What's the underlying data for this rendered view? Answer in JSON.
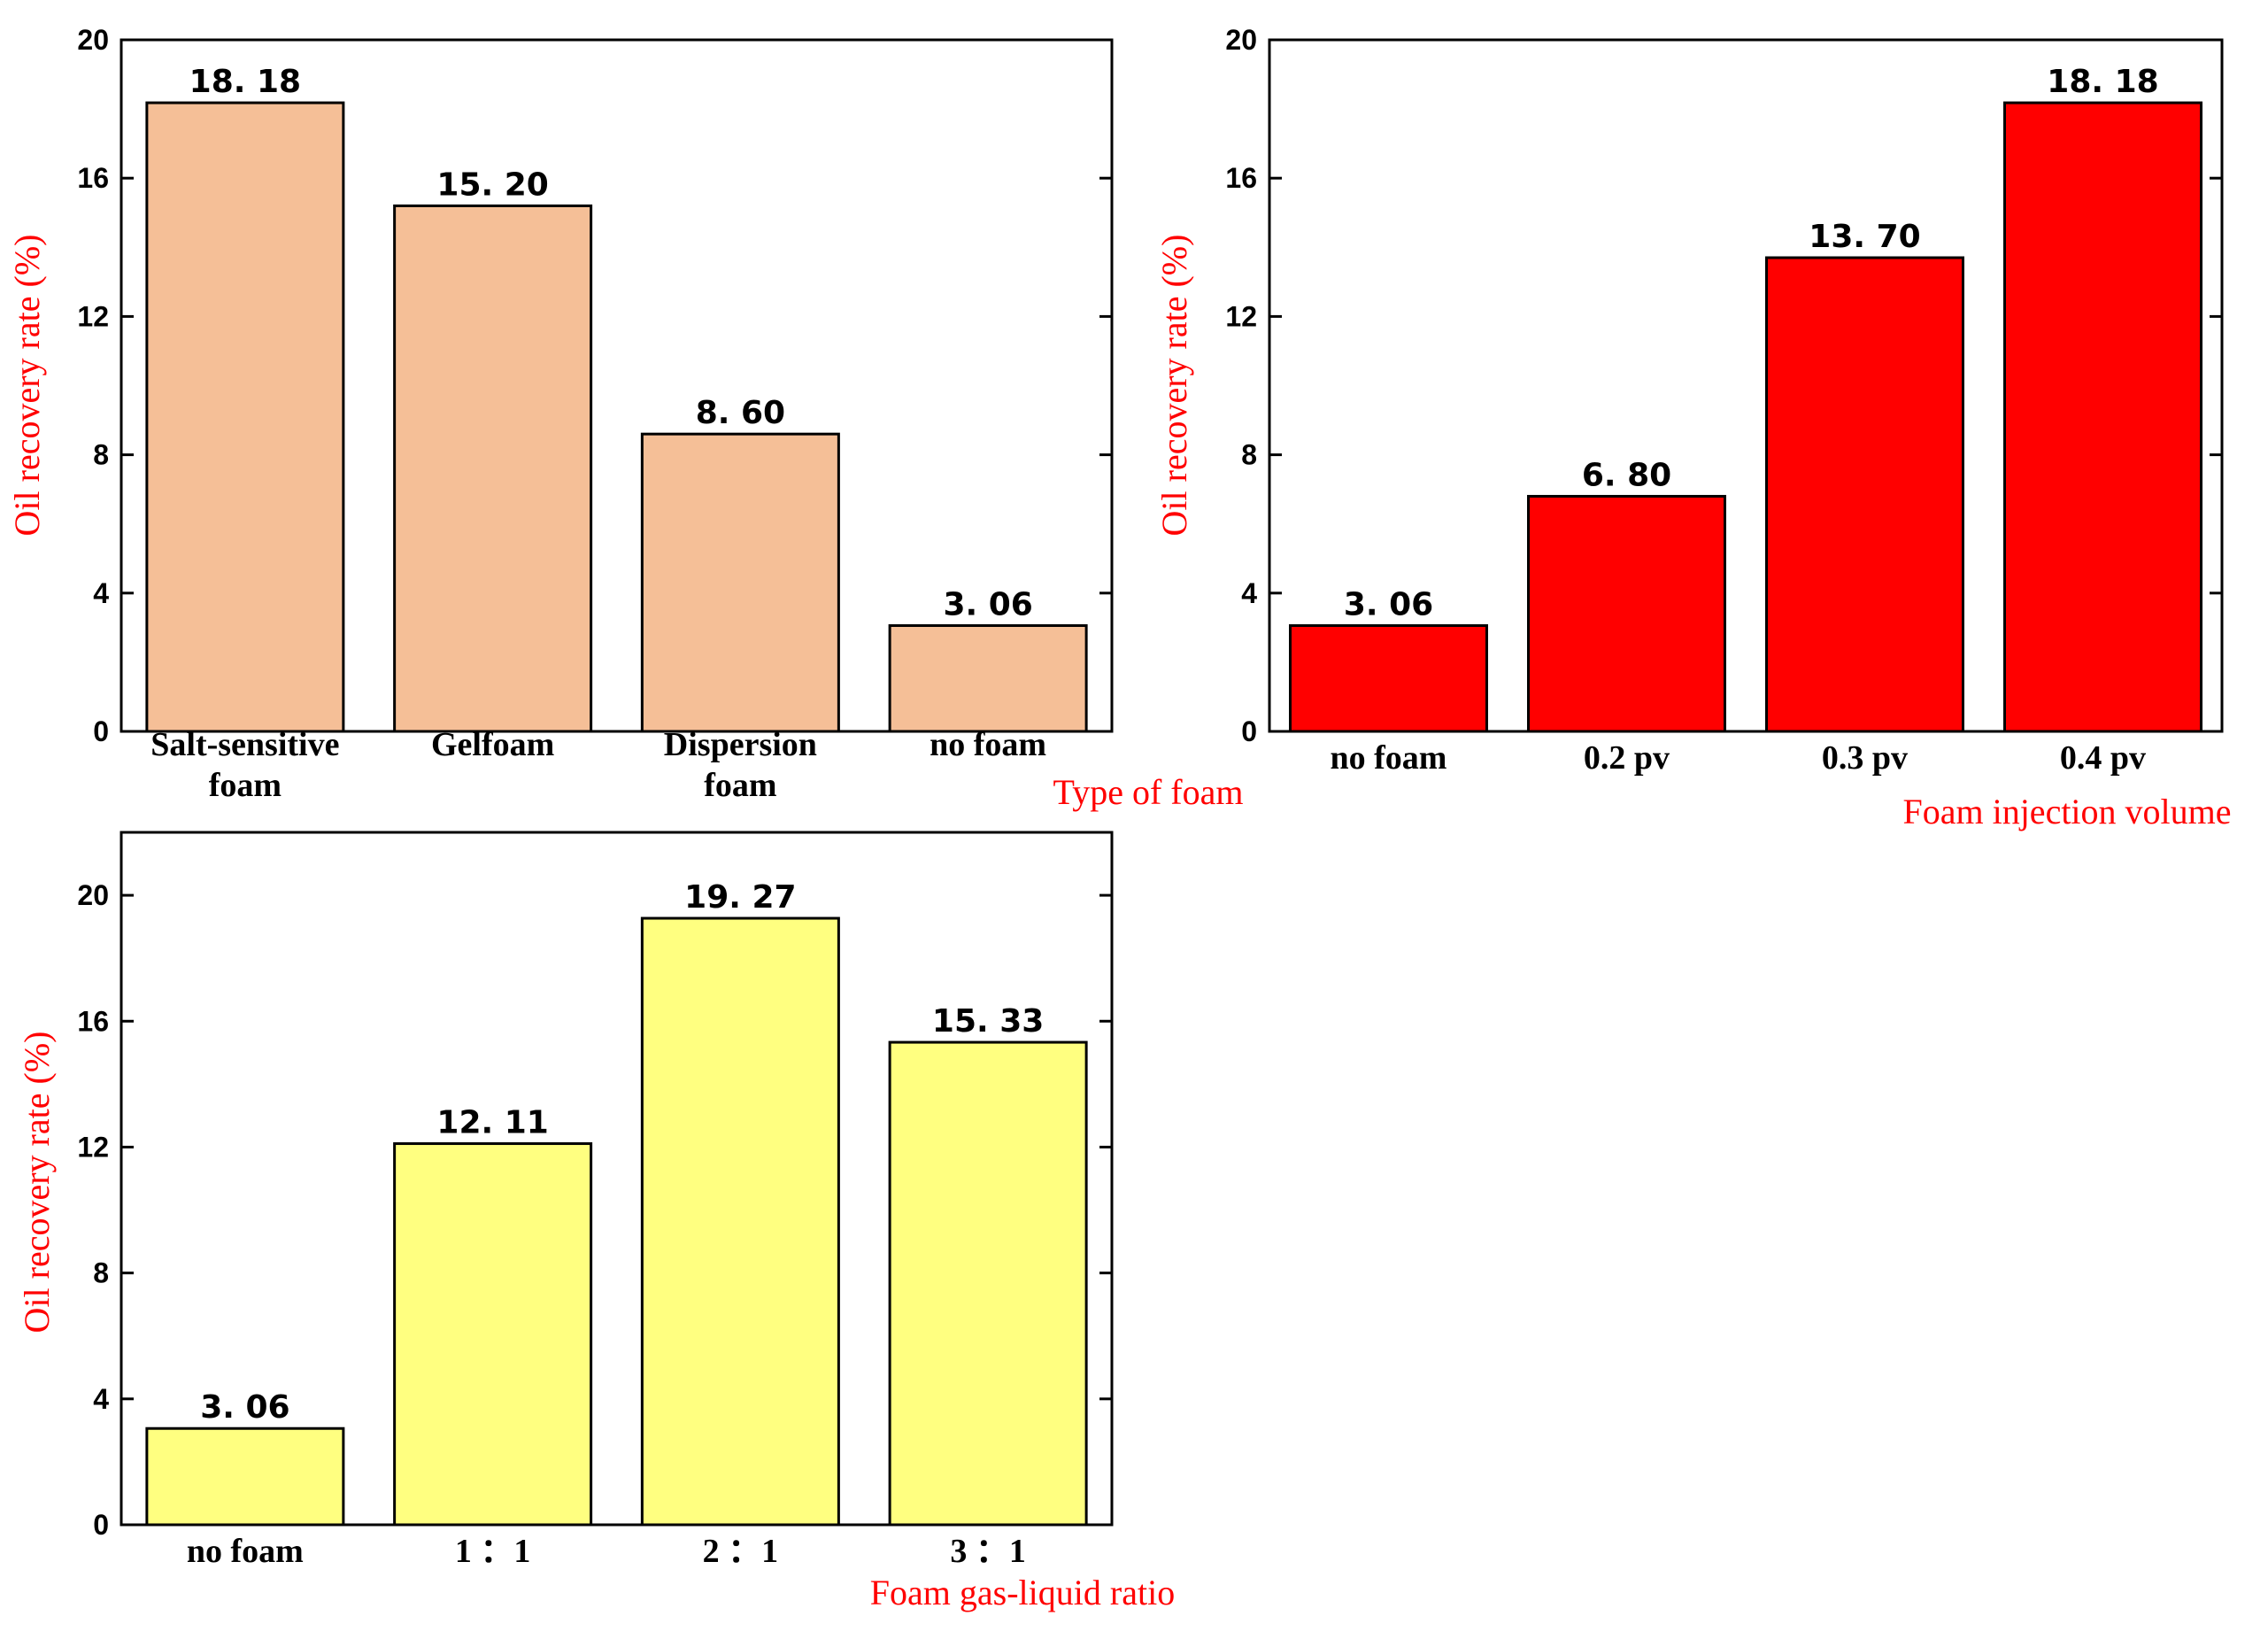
{
  "chart_data": [
    {
      "type": "bar",
      "categories": [
        "Salt-sensitive\nfoam",
        "Gelfoam",
        "Dispersion\nfoam",
        "no foam"
      ],
      "values": [
        18.18,
        15.2,
        8.6,
        3.06
      ],
      "value_labels": [
        "18. 18",
        "15. 20",
        "8. 60",
        "3. 06"
      ],
      "ylabel": "Oil recovery rate (%)",
      "xlabel": "Type of foam",
      "ylim": [
        0,
        20
      ],
      "yticks": [
        0,
        4,
        8,
        12,
        16,
        20
      ],
      "color": "#f5bf97"
    },
    {
      "type": "bar",
      "categories": [
        "no foam",
        "0.2 pv",
        "0.3 pv",
        "0.4 pv"
      ],
      "values": [
        3.06,
        6.8,
        13.7,
        18.18
      ],
      "value_labels": [
        "3. 06",
        "6. 80",
        "13. 70",
        "18. 18"
      ],
      "ylabel": "Oil recovery rate (%)",
      "xlabel": "Foam injection volume",
      "ylim": [
        0,
        20
      ],
      "yticks": [
        0,
        4,
        8,
        12,
        16,
        20
      ],
      "color": "#ff0000"
    },
    {
      "type": "bar",
      "categories": [
        "no foam",
        "1 ：1",
        "2 ：1",
        "3 ：1"
      ],
      "values": [
        3.06,
        12.11,
        19.27,
        15.33
      ],
      "value_labels": [
        "3. 06",
        "12. 11",
        "19. 27",
        "15. 33"
      ],
      "ylabel": "Oil recovery rate (%)",
      "xlabel": "Foam gas-liquid ratio",
      "ylim": [
        0,
        22
      ],
      "yticks": [
        0,
        4,
        8,
        12,
        16,
        20
      ],
      "color": "#ffff80"
    }
  ]
}
